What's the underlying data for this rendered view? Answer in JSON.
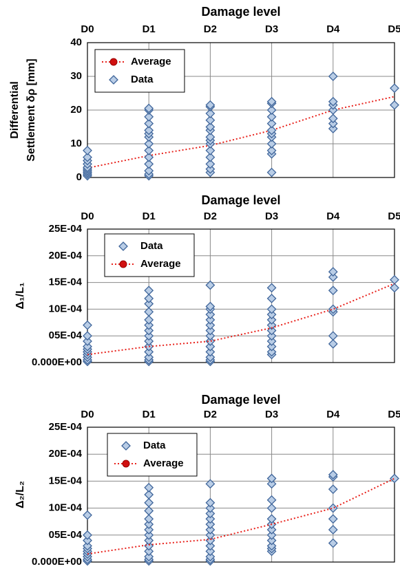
{
  "chart_data": [
    {
      "type": "scatter",
      "title": "Damage level",
      "ylabel": [
        "Differential",
        "Settlement  δρ [mm]"
      ],
      "xlim": [
        0,
        5
      ],
      "xticks": [
        {
          "value": 0,
          "label": "D0"
        },
        {
          "value": 1,
          "label": "D1"
        },
        {
          "value": 2,
          "label": "D2"
        },
        {
          "value": 3,
          "label": "D3"
        },
        {
          "value": 4,
          "label": "D4"
        },
        {
          "value": 5,
          "label": "D5"
        }
      ],
      "ylim": [
        0,
        40
      ],
      "yticks": [
        0,
        10,
        20,
        30,
        40
      ],
      "grid": true,
      "legend": "upper left",
      "series": [
        {
          "name": "Average",
          "kind": "line",
          "color": "#e8201a",
          "x": [
            0,
            1,
            2,
            3,
            4,
            5
          ],
          "values": [
            2.8,
            6.5,
            9.5,
            14,
            20,
            24
          ]
        },
        {
          "name": "Data",
          "kind": "points",
          "color": "#b9cde6",
          "x": [
            0,
            0,
            0,
            0,
            0,
            0,
            0,
            0,
            0,
            0,
            1,
            1,
            1,
            1,
            1,
            1,
            1,
            1,
            1,
            1,
            1,
            1,
            1,
            1,
            2,
            2,
            2,
            2,
            2,
            2,
            2,
            2,
            2,
            2,
            2,
            2,
            2,
            2,
            3,
            3,
            3,
            3,
            3,
            3,
            3,
            3,
            3,
            3,
            3,
            3,
            4,
            4,
            4,
            4,
            4,
            4,
            4,
            5,
            5
          ],
          "values": [
            0.5,
            1,
            1.5,
            2,
            2.5,
            3,
            4,
            5,
            6,
            8,
            0.5,
            1,
            2,
            4,
            6,
            8,
            10,
            12,
            13,
            14,
            16,
            18,
            20,
            20.5,
            1.5,
            2.5,
            4,
            6,
            8,
            10,
            11,
            12,
            14,
            15,
            17,
            19,
            21,
            21.5,
            1.5,
            7,
            8,
            10,
            12,
            13,
            14,
            16,
            18,
            20,
            22,
            22.5,
            14.5,
            16,
            17.5,
            20,
            21.5,
            22.5,
            30,
            21.5,
            26.5
          ]
        }
      ]
    },
    {
      "type": "scatter",
      "title": "Damage level",
      "ylabel": [
        "Δ₁/L₁"
      ],
      "xlim": [
        0,
        5
      ],
      "xticks": [
        {
          "value": 0,
          "label": "D0"
        },
        {
          "value": 1,
          "label": "D1"
        },
        {
          "value": 2,
          "label": "D2"
        },
        {
          "value": 3,
          "label": "D3"
        },
        {
          "value": 4,
          "label": "D4"
        },
        {
          "value": 5,
          "label": "D5"
        }
      ],
      "ylim": [
        0,
        0.0025
      ],
      "yticks": [
        {
          "value": 0,
          "label": "0.000E+00"
        },
        {
          "value": 0.0005,
          "label": "05E-04"
        },
        {
          "value": 0.001,
          "label": "10E-04"
        },
        {
          "value": 0.0015,
          "label": "15E-04"
        },
        {
          "value": 0.002,
          "label": "20E-04"
        },
        {
          "value": 0.0025,
          "label": "25E-04"
        }
      ],
      "grid": true,
      "legend": "upper left",
      "series": [
        {
          "name": "Data",
          "kind": "points",
          "color": "#b9cde6",
          "x": [
            0,
            0,
            0,
            0,
            0,
            0,
            0,
            0,
            0,
            0,
            1,
            1,
            1,
            1,
            1,
            1,
            1,
            1,
            1,
            1,
            1,
            1,
            1,
            1,
            2,
            2,
            2,
            2,
            2,
            2,
            2,
            2,
            2,
            2,
            2,
            2,
            2,
            2,
            3,
            3,
            3,
            3,
            3,
            3,
            3,
            3,
            3,
            3,
            3,
            3,
            4,
            4,
            4,
            4,
            4,
            4,
            4,
            5,
            5
          ],
          "values": [
            2e-05,
            5e-05,
            0.0001,
            0.00015,
            0.0002,
            0.00025,
            0.0003,
            0.0004,
            0.0005,
            0.0007,
            2e-05,
            5e-05,
            0.0001,
            0.0002,
            0.0003,
            0.0004,
            0.0005,
            0.0006,
            0.0007,
            0.0008,
            0.00095,
            0.0011,
            0.0012,
            0.00135,
            2e-05,
            5e-05,
            0.0001,
            0.0002,
            0.0003,
            0.0004,
            0.0005,
            0.0006,
            0.0007,
            0.0008,
            0.0009,
            0.001,
            0.00105,
            0.00145,
            0.00015,
            0.0002,
            0.0003,
            0.0004,
            0.0005,
            0.0006,
            0.0007,
            0.0008,
            0.0009,
            0.001,
            0.0012,
            0.0014,
            0.00035,
            0.0005,
            0.00095,
            0.001,
            0.00135,
            0.0016,
            0.0017,
            0.0014,
            0.00155
          ]
        },
        {
          "name": "Average",
          "kind": "line",
          "color": "#e8201a",
          "x": [
            0,
            1,
            2,
            3,
            4,
            5
          ],
          "values": [
            0.00015,
            0.0003,
            0.0004,
            0.00065,
            0.001,
            0.00148
          ]
        }
      ]
    },
    {
      "type": "scatter",
      "title": "Damage level",
      "ylabel": [
        "Δ₂/L₂"
      ],
      "xlim": [
        0,
        5
      ],
      "xticks": [
        {
          "value": 0,
          "label": "D0"
        },
        {
          "value": 1,
          "label": "D1"
        },
        {
          "value": 2,
          "label": "D2"
        },
        {
          "value": 3,
          "label": "D3"
        },
        {
          "value": 4,
          "label": "D4"
        },
        {
          "value": 5,
          "label": "D5"
        }
      ],
      "ylim": [
        0,
        0.0025
      ],
      "yticks": [
        {
          "value": 0,
          "label": "0.000E+00"
        },
        {
          "value": 0.0005,
          "label": "05E-04"
        },
        {
          "value": 0.001,
          "label": "10E-04"
        },
        {
          "value": 0.0015,
          "label": "15E-04"
        },
        {
          "value": 0.002,
          "label": "20E-04"
        },
        {
          "value": 0.0025,
          "label": "25E-04"
        }
      ],
      "grid": true,
      "legend": "upper left",
      "series": [
        {
          "name": "Data",
          "kind": "points",
          "color": "#b9cde6",
          "x": [
            0,
            0,
            0,
            0,
            0,
            0,
            0,
            0,
            0,
            0,
            1,
            1,
            1,
            1,
            1,
            1,
            1,
            1,
            1,
            1,
            1,
            1,
            1,
            1,
            2,
            2,
            2,
            2,
            2,
            2,
            2,
            2,
            2,
            2,
            2,
            2,
            2,
            2,
            3,
            3,
            3,
            3,
            3,
            3,
            3,
            3,
            3,
            3,
            3,
            3,
            4,
            4,
            4,
            4,
            4,
            4,
            4,
            5
          ],
          "values": [
            2e-05,
            5e-05,
            0.0001,
            0.00015,
            0.0002,
            0.00025,
            0.0003,
            0.0004,
            0.0005,
            0.00087,
            2e-05,
            5e-05,
            0.0001,
            0.0002,
            0.0003,
            0.0004,
            0.0005,
            0.0006,
            0.0007,
            0.0008,
            0.00095,
            0.0011,
            0.00125,
            0.00138,
            2e-05,
            5e-05,
            0.0001,
            0.0002,
            0.0003,
            0.0004,
            0.0005,
            0.0006,
            0.0007,
            0.0008,
            0.0009,
            0.001,
            0.0011,
            0.00145,
            0.0002,
            0.00025,
            0.0003,
            0.0004,
            0.0005,
            0.0006,
            0.0007,
            0.0008,
            0.001,
            0.00115,
            0.00145,
            0.00155,
            0.00035,
            0.0006,
            0.0008,
            0.001,
            0.00135,
            0.00158,
            0.00162,
            0.00155
          ]
        },
        {
          "name": "Average",
          "kind": "line",
          "color": "#e8201a",
          "x": [
            0,
            1,
            2,
            3,
            4,
            5
          ],
          "values": [
            0.00015,
            0.00032,
            0.00042,
            0.0007,
            0.001,
            0.00155
          ]
        }
      ]
    }
  ]
}
